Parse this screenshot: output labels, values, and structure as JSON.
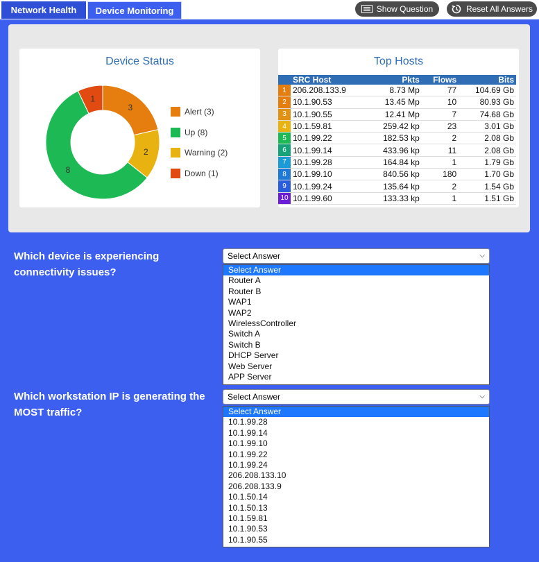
{
  "tabs": [
    {
      "label": "Network Health"
    },
    {
      "label": "Device Monitoring"
    }
  ],
  "toolbar": {
    "show_question": "Show Question",
    "reset_all": "Reset All Answers"
  },
  "device_status": {
    "title": "Device Status",
    "segments": [
      {
        "label": "Alert (3)",
        "value": 3,
        "color": "#e67e0f"
      },
      {
        "label": "Warning (2)",
        "value": 2,
        "color": "#e8b311"
      },
      {
        "label": "Up (8)",
        "value": 8,
        "color": "#1db954"
      },
      {
        "label": "Down (1)",
        "value": 1,
        "color": "#e14b12"
      }
    ],
    "legend": [
      {
        "label": "Alert (3)",
        "color": "#e67e0f"
      },
      {
        "label": "Up (8)",
        "color": "#1db954"
      },
      {
        "label": "Warning (2)",
        "color": "#e8b311"
      },
      {
        "label": "Down (1)",
        "color": "#e14b12"
      }
    ]
  },
  "top_hosts": {
    "title": "Top Hosts",
    "columns": [
      "SRC Host",
      "Pkts",
      "Flows",
      "Bits"
    ],
    "rows": [
      {
        "rank": "1",
        "host": "206.208.133.9",
        "pkts": "8.73 Mp",
        "flows": "77",
        "bits": "104.69 Gb",
        "color": "#e67e0f"
      },
      {
        "rank": "2",
        "host": "10.1.90.53",
        "pkts": "13.45 Mp",
        "flows": "10",
        "bits": "80.93 Gb",
        "color": "#e67e0f"
      },
      {
        "rank": "3",
        "host": "10.1.90.55",
        "pkts": "12.41 Mp",
        "flows": "7",
        "bits": "74.68 Gb",
        "color": "#e09215"
      },
      {
        "rank": "4",
        "host": "10.1.59.81",
        "pkts": "259.42 kp",
        "flows": "23",
        "bits": "3.01 Gb",
        "color": "#e8b311"
      },
      {
        "rank": "5",
        "host": "10.1.99.22",
        "pkts": "182.53 kp",
        "flows": "2",
        "bits": "2.08 Gb",
        "color": "#1db954"
      },
      {
        "rank": "6",
        "host": "10.1.99.14",
        "pkts": "433.96 kp",
        "flows": "11",
        "bits": "2.08 Gb",
        "color": "#16a37a"
      },
      {
        "rank": "7",
        "host": "10.1.99.28",
        "pkts": "164.84 kp",
        "flows": "1",
        "bits": "1.79 Gb",
        "color": "#1a9ad6"
      },
      {
        "rank": "8",
        "host": "10.1.99.10",
        "pkts": "840.56 kp",
        "flows": "180",
        "bits": "1.70 Gb",
        "color": "#1e78d6"
      },
      {
        "rank": "9",
        "host": "10.1.99.24",
        "pkts": "135.64 kp",
        "flows": "2",
        "bits": "1.54 Gb",
        "color": "#2a5ce0"
      },
      {
        "rank": "10",
        "host": "10.1.99.60",
        "pkts": "133.33 kp",
        "flows": "1",
        "bits": "1.51 Gb",
        "color": "#6a1fd6"
      }
    ]
  },
  "questions": [
    {
      "text": "Which device is experiencing connectivity issues?",
      "selected": "Select Answer",
      "options": [
        "Select Answer",
        "Router A",
        "Router B",
        "WAP1",
        "WAP2",
        "WirelessController",
        "Switch A",
        "Switch B",
        "DHCP Server",
        "Web Server",
        "APP Server"
      ]
    },
    {
      "text": "Which workstation IP is generating the MOST traffic?",
      "selected": "Select Answer",
      "options": [
        "Select Answer",
        "10.1.99.28",
        "10.1.99.14",
        "10.1.99.10",
        "10.1.99.22",
        "10.1.99.24",
        "206.208.133.10",
        "206.208.133.9",
        "10.1.50.14",
        "10.1.50.13",
        "10.1.59.81",
        "10.1.90.53",
        "10.1.90.55"
      ]
    }
  ]
}
